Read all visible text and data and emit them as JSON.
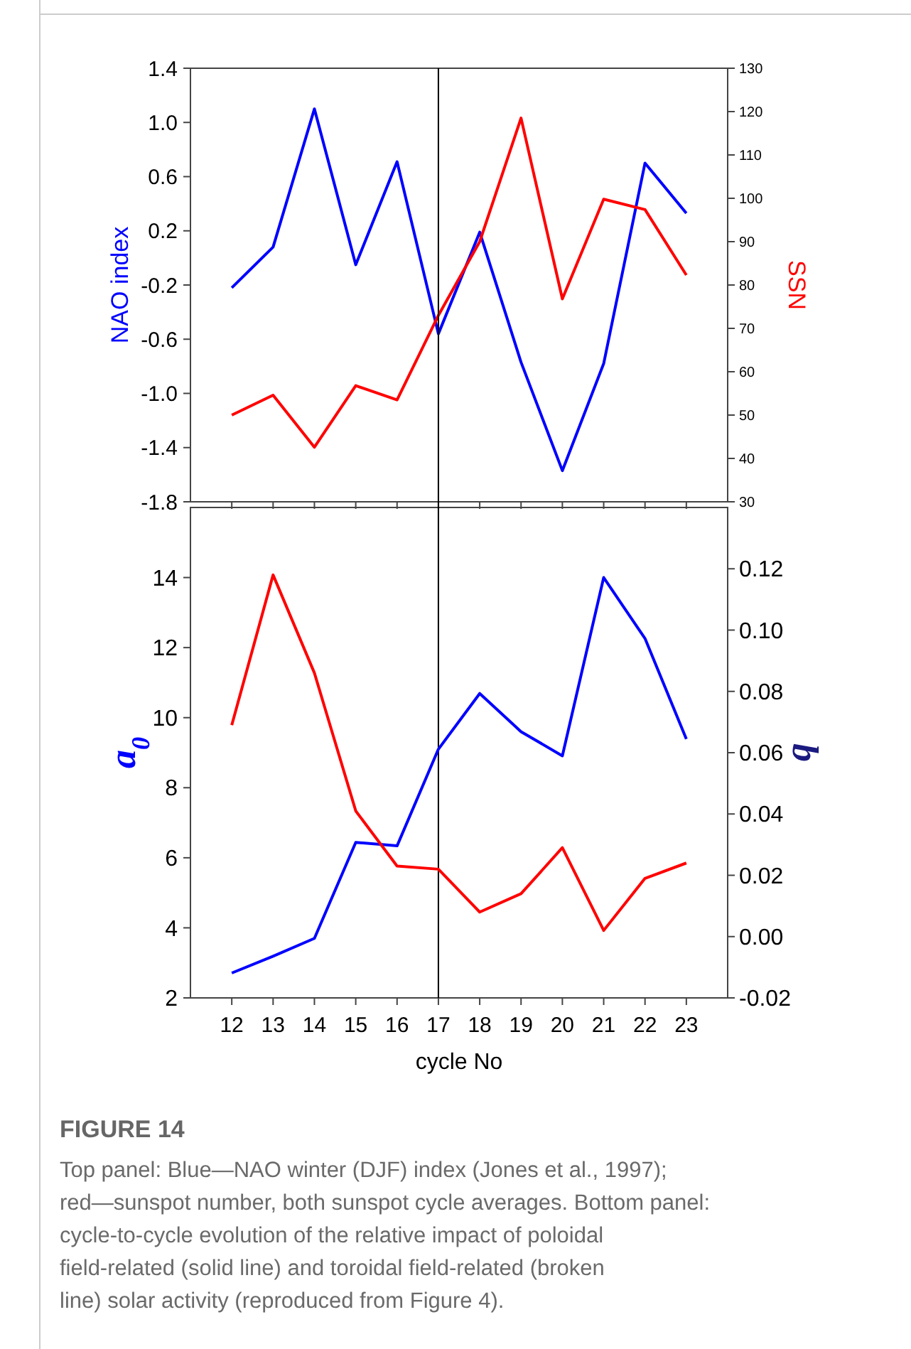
{
  "chart_data": [
    {
      "type": "line",
      "ylabel": "NAO index",
      "y2label": "SSN",
      "categories": [
        null,
        null,
        null,
        null,
        null,
        null,
        null,
        null,
        null,
        null,
        null,
        null
      ],
      "ylim": [
        -1.8,
        1.4
      ],
      "yticks": [
        -1.8,
        -1.4,
        {
          "value": -1,
          "label": "-1.0"
        },
        -0.6,
        -0.2,
        0.2,
        0.6,
        {
          "value": 1,
          "label": "1.0"
        },
        1.4
      ],
      "y2lim": [
        30,
        130
      ],
      "y2ticks": [
        30,
        40,
        50,
        60,
        70,
        80,
        90,
        100,
        110,
        120,
        130
      ],
      "series": [
        {
          "color": "#0000ff",
          "values": [
            -0.22,
            0.08,
            1.1,
            -0.05,
            0.71,
            -0.56,
            0.19,
            -0.77,
            -1.57,
            -0.78,
            0.7,
            0.33
          ]
        },
        {
          "color": "#ff0000",
          "axis": "y2",
          "values": [
            50,
            54.6,
            42.6,
            56.8,
            53.5,
            73,
            90,
            118.5,
            76.8,
            99.8,
            97.4,
            82.3
          ]
        }
      ]
    },
    {
      "type": "line",
      "xlabel": "cycle No",
      "ylabel": "a$_{0}$",
      "y2label": "b",
      "x": [
        12,
        13,
        14,
        15,
        16,
        17,
        18,
        19,
        20,
        21,
        22,
        23
      ],
      "xlim": [
        11,
        24
      ],
      "xticks": [
        12,
        13,
        14,
        15,
        16,
        17,
        18,
        19,
        20,
        21,
        22,
        23
      ],
      "ylim": [
        2,
        16
      ],
      "yticks": [
        2,
        4,
        6,
        8,
        10,
        12,
        14
      ],
      "y2lim": [
        -0.02,
        0.14
      ],
      "y2ticks": [
        {
          "value": -0.02,
          "label": "-0.02"
        },
        {
          "value": 0,
          "label": "0.00"
        },
        {
          "value": 0.02,
          "label": "0.02"
        },
        {
          "value": 0.04,
          "label": "0.04"
        },
        {
          "value": 0.06,
          "label": "0.06"
        },
        {
          "value": 0.08,
          "label": "0.08"
        },
        {
          "value": 0.1,
          "label": "0.10"
        },
        {
          "value": 0.12,
          "label": "0.12"
        }
      ],
      "series": [
        {
          "color": "#0000ff",
          "values": [
            2.71,
            3.19,
            3.7,
            6.44,
            6.34,
            9.1,
            10.69,
            9.6,
            8.91,
            14.0,
            12.26,
            9.39
          ]
        },
        {
          "color": "#ff0000",
          "axis": "y2",
          "values": [
            0.069,
            0.118,
            0.086,
            0.041,
            0.023,
            0.022,
            0.008,
            0.014,
            0.029,
            0.002,
            0.019,
            0.024
          ]
        }
      ],
      "ref_lines": [
        {
          "axis": "x",
          "value": 17,
          "color": "#000000"
        }
      ],
      "annotations": [
        "FIGURE 14",
        "Top panel: Blue—NAO winter (DJF) index (Jones et al., 1997); red—sunspot number, both sunspot cycle averages. Bottom panel: cycle-to-cycle evolution of the relative impact of poloidal field-related (solid line) and toroidal field-related (broken line) solar activity (reproduced from Figure 4)."
      ]
    }
  ]
}
